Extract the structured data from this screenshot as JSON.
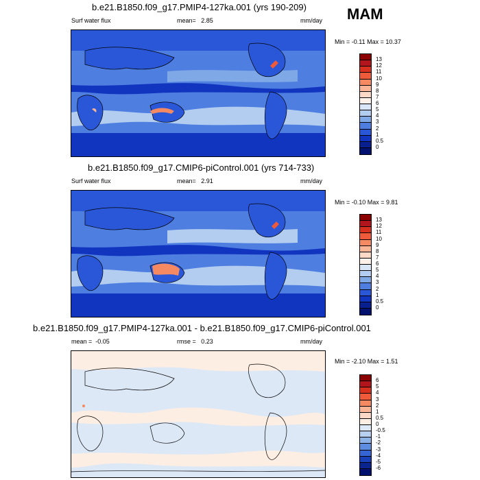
{
  "season": "MAM",
  "panels": [
    {
      "title": "b.e21.B1850.f09_g17.PMIP4-127ka.001 (yrs 190-209)",
      "left_label": "Surf water flux",
      "mean_label": "mean=",
      "mean_value": "2.85",
      "units": "mm/day",
      "min_max": "Min = -0.11 Max = 10.37",
      "colorbar_labels": [
        "13",
        "12",
        "11",
        "10",
        "9",
        "8",
        "7",
        "6",
        "5",
        "4",
        "3",
        "2",
        "1",
        "0.5",
        "0"
      ],
      "colorbar_colors": [
        "#8b0000",
        "#b2151c",
        "#d7301f",
        "#ef5a3a",
        "#f58a62",
        "#f9b596",
        "#fbd9c6",
        "#fdf1e9",
        "#d9e6f7",
        "#b3cdf0",
        "#7fa8e6",
        "#4d7ee0",
        "#2a57d8",
        "#1235c0",
        "#08208f",
        "#02106e"
      ]
    },
    {
      "title": "b.e21.B1850.f09_g17.CMIP6-piControl.001 (yrs 714-733)",
      "left_label": "Surf water flux",
      "mean_label": "mean=",
      "mean_value": "2.91",
      "units": "mm/day",
      "min_max": "Min = -0.10 Max = 9.81",
      "colorbar_labels": [
        "13",
        "12",
        "11",
        "10",
        "9",
        "8",
        "7",
        "6",
        "5",
        "4",
        "3",
        "2",
        "1",
        "0.5",
        "0"
      ],
      "colorbar_colors": [
        "#8b0000",
        "#b2151c",
        "#d7301f",
        "#ef5a3a",
        "#f58a62",
        "#f9b596",
        "#fbd9c6",
        "#fdf1e9",
        "#d9e6f7",
        "#b3cdf0",
        "#7fa8e6",
        "#4d7ee0",
        "#2a57d8",
        "#1235c0",
        "#08208f",
        "#02106e"
      ]
    },
    {
      "title": "b.e21.B1850.f09_g17.PMIP4-127ka.001 - b.e21.B1850.f09_g17.CMIP6-piControl.001",
      "mean_label": "mean = ",
      "mean_value": "-0.05",
      "rmse_label": "rmse = ",
      "rmse_value": "0.23",
      "units": "mm/day",
      "min_max": "Min = -2.10 Max = 1.51",
      "colorbar_labels": [
        "6",
        "5",
        "4",
        "3",
        "2",
        "1",
        "0.5",
        "0",
        "-0.5",
        "-1",
        "-2",
        "-3",
        "-4",
        "-5",
        "-6"
      ],
      "colorbar_colors": [
        "#8b0000",
        "#b2151c",
        "#d7301f",
        "#ef5a3a",
        "#f58a62",
        "#f9b596",
        "#fbd9c6",
        "#fdeee3",
        "#dde8f7",
        "#b8d0f0",
        "#8cb2e8",
        "#5e8de0",
        "#3565d4",
        "#1840b8",
        "#0a2590",
        "#02106e"
      ]
    }
  ]
}
